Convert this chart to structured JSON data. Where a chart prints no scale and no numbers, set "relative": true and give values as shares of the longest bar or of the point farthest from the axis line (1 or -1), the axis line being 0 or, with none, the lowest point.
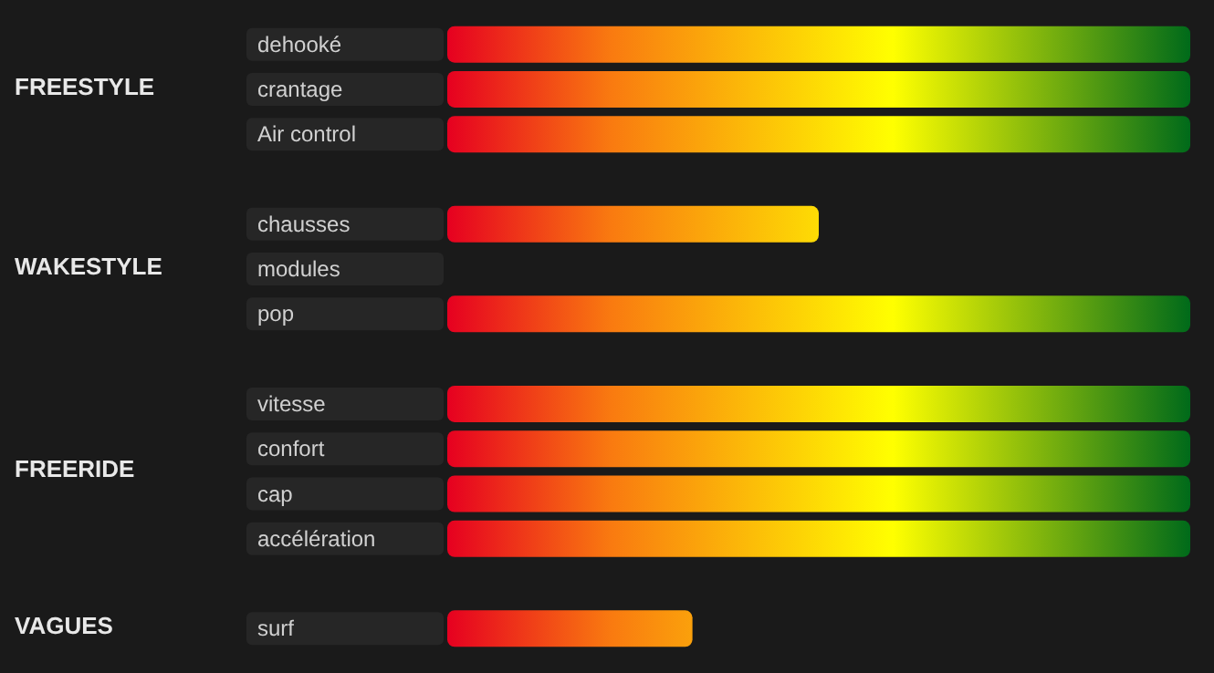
{
  "chart_data": {
    "type": "bar",
    "orientation": "horizontal",
    "relative": true,
    "categories": [
      "dehooké",
      "crantage",
      "Air control",
      null,
      "chausses",
      "modules",
      "pop",
      null,
      "vitesse",
      "confort",
      "cap",
      "accélération",
      null,
      "surf"
    ],
    "values": [
      1,
      1,
      1,
      null,
      0.5,
      null,
      1,
      null,
      1,
      1,
      1,
      1,
      null,
      0.33
    ],
    "annotations": [
      "FREESTYLE",
      "WAKESTYLE",
      "FREERIDE",
      "VAGUES"
    ]
  }
}
